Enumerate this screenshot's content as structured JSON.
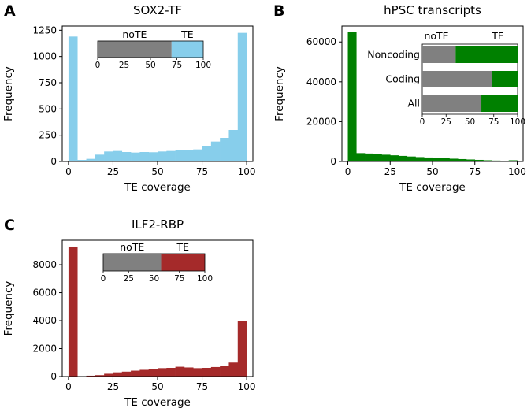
{
  "chart_data": [
    {
      "panel": "A",
      "type": "bar",
      "title": "SOX2-TF",
      "xlabel": "TE coverage",
      "ylabel": "Frequency",
      "color": "#87ceeb",
      "xlim": [
        -3.5,
        103.5
      ],
      "ylim": [
        0,
        1290
      ],
      "xticks": [
        0,
        25,
        50,
        75,
        100
      ],
      "yticks": [
        0,
        250,
        500,
        750,
        1000,
        1250
      ],
      "bin_edges": [
        0,
        5,
        10,
        15,
        20,
        25,
        30,
        35,
        40,
        45,
        50,
        55,
        60,
        65,
        70,
        75,
        80,
        85,
        90,
        95,
        100
      ],
      "values": [
        1190,
        15,
        25,
        65,
        95,
        100,
        90,
        85,
        90,
        88,
        95,
        100,
        108,
        110,
        115,
        150,
        190,
        225,
        300,
        1225
      ],
      "inset": {
        "type": "stacked-bar",
        "series": [
          {
            "name": "noTE",
            "value": 70,
            "color": "#808080"
          },
          {
            "name": "TE",
            "value": 30,
            "color": "#87ceeb"
          }
        ],
        "xticks": [
          0,
          25,
          50,
          75,
          100
        ]
      }
    },
    {
      "panel": "B",
      "type": "bar",
      "title": "hPSC transcripts",
      "xlabel": "TE coverage",
      "ylabel": "Frequency",
      "color": "#008000",
      "xlim": [
        -3.5,
        103.5
      ],
      "ylim": [
        0,
        68000
      ],
      "xticks": [
        0,
        25,
        50,
        75,
        100
      ],
      "yticks": [
        0,
        20000,
        40000,
        60000
      ],
      "bin_edges": [
        0,
        5,
        10,
        15,
        20,
        25,
        30,
        35,
        40,
        45,
        50,
        55,
        60,
        65,
        70,
        75,
        80,
        85,
        90,
        95,
        100
      ],
      "values": [
        65000,
        4200,
        4000,
        3700,
        3400,
        3100,
        2800,
        2500,
        2200,
        2000,
        1800,
        1600,
        1400,
        1200,
        1000,
        800,
        600,
        450,
        350,
        600
      ],
      "inset": {
        "type": "stacked-barh",
        "categories": [
          "Noncoding",
          "Coding",
          "All"
        ],
        "series": [
          {
            "name": "noTE",
            "values": [
              35,
              73,
              62
            ],
            "color": "#808080"
          },
          {
            "name": "TE",
            "values": [
              65,
              27,
              38
            ],
            "color": "#008000"
          }
        ],
        "xticks": [
          0,
          25,
          50,
          75,
          100
        ]
      }
    },
    {
      "panel": "C",
      "type": "bar",
      "title": "ILF2-RBP",
      "xlabel": "TE coverage",
      "ylabel": "Frequency",
      "color": "#a52a2a",
      "xlim": [
        -3.5,
        103.5
      ],
      "ylim": [
        0,
        9750
      ],
      "xticks": [
        0,
        25,
        50,
        75,
        100
      ],
      "yticks": [
        0,
        2000,
        4000,
        6000,
        8000
      ],
      "bin_edges": [
        0,
        5,
        10,
        15,
        20,
        25,
        30,
        35,
        40,
        45,
        50,
        55,
        60,
        65,
        70,
        75,
        80,
        85,
        90,
        95,
        100
      ],
      "values": [
        9300,
        20,
        60,
        100,
        200,
        300,
        350,
        420,
        480,
        550,
        600,
        620,
        700,
        650,
        600,
        620,
        680,
        750,
        1000,
        4000
      ],
      "inset": {
        "type": "stacked-bar",
        "series": [
          {
            "name": "noTE",
            "value": 57,
            "color": "#808080"
          },
          {
            "name": "TE",
            "value": 43,
            "color": "#a52a2a"
          }
        ],
        "xticks": [
          0,
          25,
          50,
          75,
          100
        ]
      }
    }
  ]
}
